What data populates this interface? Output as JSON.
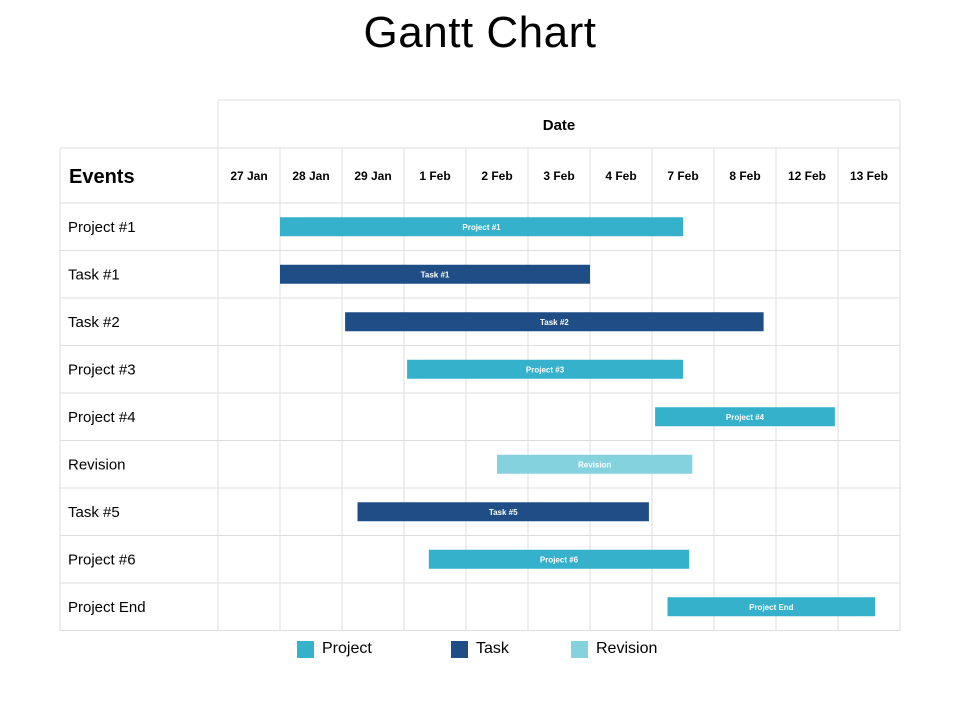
{
  "chart_data": {
    "type": "gantt",
    "title": "Gantt Chart",
    "column_header": "Date",
    "row_header": "Events",
    "dates": [
      "27 Jan",
      "28 Jan",
      "29 Jan",
      "1 Feb",
      "2 Feb",
      "3 Feb",
      "4 Feb",
      "7 Feb",
      "8 Feb",
      "12 Feb",
      "13 Feb"
    ],
    "tasks": [
      {
        "name": "Project #1",
        "label": "Project #1",
        "category": "Project",
        "start": 1.0,
        "end": 7.5
      },
      {
        "name": "Task #1",
        "label": "Task #1",
        "category": "Task",
        "start": 1.0,
        "end": 6.0
      },
      {
        "name": "Task #2",
        "label": "Task #2",
        "category": "Task",
        "start": 2.05,
        "end": 8.8
      },
      {
        "name": "Project #3",
        "label": "Project #3",
        "category": "Project",
        "start": 3.05,
        "end": 7.5
      },
      {
        "name": "Project #4",
        "label": "Project #4",
        "category": "Project",
        "start": 7.05,
        "end": 9.95
      },
      {
        "name": "Revision",
        "label": "Revision",
        "category": "Revision",
        "start": 4.5,
        "end": 7.65
      },
      {
        "name": "Task #5",
        "label": "Task #5",
        "category": "Task",
        "start": 2.25,
        "end": 6.95
      },
      {
        "name": "Project #6",
        "label": "Project #6",
        "category": "Project",
        "start": 3.4,
        "end": 7.6
      },
      {
        "name": "Project End",
        "label": "Project End",
        "category": "Project",
        "start": 7.25,
        "end": 10.6
      }
    ],
    "legend": [
      {
        "name": "Project",
        "color": "#35b1cc"
      },
      {
        "name": "Task",
        "color": "#1f4e87"
      },
      {
        "name": "Revision",
        "color": "#85d2df"
      }
    ]
  }
}
